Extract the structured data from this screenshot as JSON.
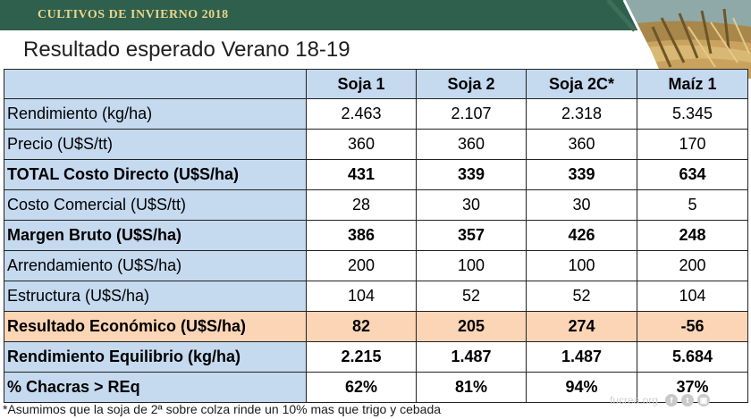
{
  "header": {
    "title": "CULTIVOS DE INVIERNO 2018"
  },
  "slide_title": "Resultado esperado Verano 18-19",
  "table": {
    "columns": [
      "Soja 1",
      "Soja 2",
      "Soja 2C*",
      "Maíz 1"
    ],
    "rows": [
      {
        "label": "Rendimiento (kg/ha)",
        "values": [
          "2.463",
          "2.107",
          "2.318",
          "5.345"
        ]
      },
      {
        "label": "Precio (U$S/tt)",
        "values": [
          "360",
          "360",
          "360",
          "170"
        ]
      },
      {
        "label": "TOTAL Costo Directo (U$S/ha)",
        "values": [
          "431",
          "339",
          "339",
          "634"
        ]
      },
      {
        "label": "Costo Comercial (U$S/tt)",
        "values": [
          "28",
          "30",
          "30",
          "5"
        ]
      },
      {
        "label": "Margen Bruto (U$S/ha)",
        "values": [
          "386",
          "357",
          "426",
          "248"
        ]
      },
      {
        "label": "Arrendamiento (U$S/ha)",
        "values": [
          "200",
          "100",
          "100",
          "200"
        ]
      },
      {
        "label": "Estructura (U$S/ha)",
        "values": [
          "104",
          "52",
          "52",
          "104"
        ]
      },
      {
        "label": "Resultado Económico (U$S/ha)",
        "values": [
          "82",
          "205",
          "274",
          "-56"
        ]
      },
      {
        "label": "Rendimiento Equilibrio (kg/ha)",
        "values": [
          "2.215",
          "1.487",
          "1.487",
          "5.684"
        ]
      },
      {
        "label": "% Chacras > REq",
        "values": [
          "62%",
          "81%",
          "94%",
          "37%"
        ]
      }
    ]
  },
  "footnote": "*Asumimos que la soja de 2ª sobre colza rinde un 10% mas que trigo y cebada",
  "brand": "fucrea.org",
  "icons": [
    "facebook-icon",
    "twitter-icon",
    "instagram-icon"
  ],
  "colors": {
    "header_bar": "#2f5f4d",
    "header_text": "#e9d58a",
    "label_cell": "#c5d9ef",
    "highlight_row": "#fbd5b5"
  }
}
